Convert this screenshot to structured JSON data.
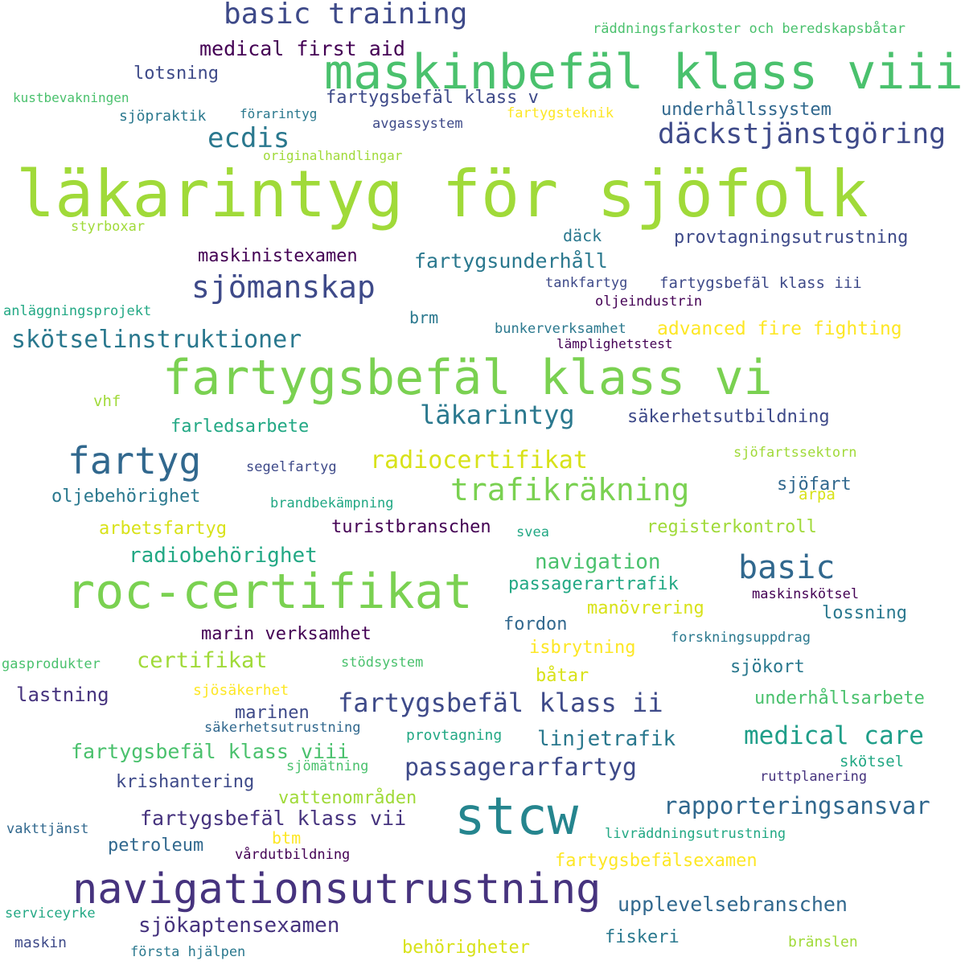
{
  "words": [
    {
      "text": "läkarintyg för sjöfolk",
      "color": "#a0da39"
    },
    {
      "text": "maskinbefäl klass viii",
      "color": "#4ac16d"
    },
    {
      "text": "fartygsbefäl klass vi",
      "color": "#7ad151"
    },
    {
      "text": "roc-certifikat",
      "color": "#7ad151"
    },
    {
      "text": "navigationsutrustning",
      "color": "#46337e"
    },
    {
      "text": "stcw",
      "color": "#25858e"
    },
    {
      "text": "basic training",
      "color": "#3e4a89"
    },
    {
      "text": "däckstjänstgöring",
      "color": "#3e4a89"
    },
    {
      "text": "fartyg",
      "color": "#31688e"
    },
    {
      "text": "trafikräkning",
      "color": "#7ad151"
    },
    {
      "text": "sjömanskap",
      "color": "#3e4a89"
    },
    {
      "text": "basic",
      "color": "#31688e"
    },
    {
      "text": "fartygsbefäl klass ii",
      "color": "#3e4a89"
    },
    {
      "text": "medical care",
      "color": "#1f9e89"
    },
    {
      "text": "passagerarfartyg",
      "color": "#3e4a89"
    },
    {
      "text": "rapporteringsansvar",
      "color": "#31688e"
    },
    {
      "text": "sjökaptensexamen",
      "color": "#46337e"
    },
    {
      "text": "upplevelsebranschen",
      "color": "#31688e"
    },
    {
      "text": "skötselinstruktioner",
      "color": "#2a788e"
    },
    {
      "text": "läkarintyg",
      "color": "#2a788e"
    },
    {
      "text": "radiocertifikat",
      "color": "#d8e219"
    },
    {
      "text": "ecdis",
      "color": "#2a788e"
    },
    {
      "text": "medical first aid",
      "color": "#440154"
    },
    {
      "text": "fartygsbefäl klass v",
      "color": "#3e4a89"
    },
    {
      "text": "fartygsbefäl klass viii",
      "color": "#4ac16d"
    },
    {
      "text": "fartygsbefäl klass vii",
      "color": "#46337e"
    },
    {
      "text": "radiobehörighet",
      "color": "#22a884"
    },
    {
      "text": "navigation",
      "color": "#4ac16d"
    },
    {
      "text": "linjetrafik",
      "color": "#2a788e"
    },
    {
      "text": "fartygsunderhåll",
      "color": "#2a788e"
    },
    {
      "text": "certifikat",
      "color": "#a0da39"
    },
    {
      "text": "behörigheter",
      "color": "#d8e219"
    },
    {
      "text": "underhållssystem",
      "color": "#31688e"
    },
    {
      "text": "lotsning",
      "color": "#3e4a89"
    },
    {
      "text": "maskinistexamen",
      "color": "#440154"
    },
    {
      "text": "provtagningsutrustning",
      "color": "#3e4a89"
    },
    {
      "text": "advanced fire fighting",
      "color": "#fde725"
    },
    {
      "text": "säkerhetsutbildning",
      "color": "#3e4a89"
    },
    {
      "text": "oljebehörighet",
      "color": "#2a788e"
    },
    {
      "text": "farledsarbete",
      "color": "#22a884"
    },
    {
      "text": "arbetsfartyg",
      "color": "#d8e219"
    },
    {
      "text": "turistbranschen",
      "color": "#440154"
    },
    {
      "text": "registerkontroll",
      "color": "#a0da39"
    },
    {
      "text": "marin verksamhet",
      "color": "#440154"
    },
    {
      "text": "manövrering",
      "color": "#d8e219"
    },
    {
      "text": "lossning",
      "color": "#2a788e"
    },
    {
      "text": "lastning",
      "color": "#46337e"
    },
    {
      "text": "krishantering",
      "color": "#3e4a89"
    },
    {
      "text": "vattenområden",
      "color": "#a0da39"
    },
    {
      "text": "fartygsbefälsexamen",
      "color": "#fde725"
    },
    {
      "text": "fiskeri",
      "color": "#2a788e"
    },
    {
      "text": "underhållsarbete",
      "color": "#4ac16d"
    },
    {
      "text": "passagerartrafik",
      "color": "#22a884"
    },
    {
      "text": "isbrytning",
      "color": "#fde725"
    },
    {
      "text": "fordon",
      "color": "#31688e"
    },
    {
      "text": "petroleum",
      "color": "#31688e"
    },
    {
      "text": "sjöfart",
      "color": "#31688e"
    },
    {
      "text": "sjökort",
      "color": "#2a788e"
    },
    {
      "text": "marinen",
      "color": "#3e4a89"
    },
    {
      "text": "båtar",
      "color": "#d8e219"
    },
    {
      "text": "btm",
      "color": "#fde725"
    },
    {
      "text": "brm",
      "color": "#2a788e"
    },
    {
      "text": "däck",
      "color": "#2a788e"
    },
    {
      "text": "räddningsfarkoster och beredskapsbåtar",
      "color": "#4ac16d"
    },
    {
      "text": "kustbevakningen",
      "color": "#4ac16d"
    },
    {
      "text": "sjöpraktik",
      "color": "#2a788e"
    },
    {
      "text": "förarintyg",
      "color": "#2a788e"
    },
    {
      "text": "avgassystem",
      "color": "#3e4a89"
    },
    {
      "text": "fartygsteknik",
      "color": "#fde725"
    },
    {
      "text": "originalhandlingar",
      "color": "#a0da39"
    },
    {
      "text": "styrboxar",
      "color": "#a0da39"
    },
    {
      "text": "tankfartyg",
      "color": "#3e4a89"
    },
    {
      "text": "fartygsbefäl klass iii",
      "color": "#3e4a89"
    },
    {
      "text": "oljeindustrin",
      "color": "#440154"
    },
    {
      "text": "anläggningsprojekt",
      "color": "#22a884"
    },
    {
      "text": "bunkerverksamhet",
      "color": "#2a788e"
    },
    {
      "text": "lämplighetstest",
      "color": "#440154"
    },
    {
      "text": "vhf",
      "color": "#a0da39"
    },
    {
      "text": "segelfartyg",
      "color": "#3e4a89"
    },
    {
      "text": "sjöfartssektorn",
      "color": "#a0da39"
    },
    {
      "text": "brandbekämpning",
      "color": "#22a884"
    },
    {
      "text": "arpa",
      "color": "#d8e219"
    },
    {
      "text": "svea",
      "color": "#22a884"
    },
    {
      "text": "maskinskötsel",
      "color": "#440154"
    },
    {
      "text": "forskningsuppdrag",
      "color": "#2a788e"
    },
    {
      "text": "gasprodukter",
      "color": "#4ac16d"
    },
    {
      "text": "stödsystem",
      "color": "#4ac16d"
    },
    {
      "text": "sjösäkerhet",
      "color": "#fde725"
    },
    {
      "text": "säkerhetsutrustning",
      "color": "#31688e"
    },
    {
      "text": "provtagning",
      "color": "#22a884"
    },
    {
      "text": "sjömätning",
      "color": "#4ac16d"
    },
    {
      "text": "skötsel",
      "color": "#22a884"
    },
    {
      "text": "ruttplanering",
      "color": "#46337e"
    },
    {
      "text": "vakttjänst",
      "color": "#31688e"
    },
    {
      "text": "livräddningsutrustning",
      "color": "#22a884"
    },
    {
      "text": "vårdutbildning",
      "color": "#440154"
    },
    {
      "text": "serviceyrke",
      "color": "#22a884"
    },
    {
      "text": "maskin",
      "color": "#3e4a89"
    },
    {
      "text": "första hjälpen",
      "color": "#2a788e"
    },
    {
      "text": "bränslen",
      "color": "#a0da39"
    }
  ]
}
